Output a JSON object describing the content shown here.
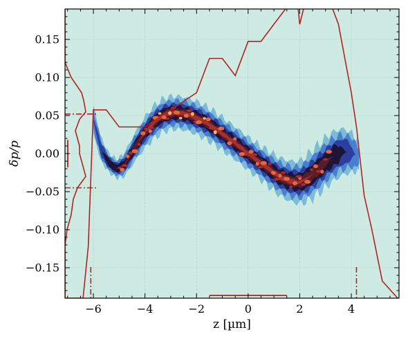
{
  "chart_data": {
    "type": "heatmap",
    "title": "",
    "xlabel": "z [µm]",
    "ylabel": "δp/p",
    "xlim": [
      -7.1,
      5.85
    ],
    "ylim": [
      -0.19,
      0.19
    ],
    "xticks": [
      -6,
      -4,
      -2,
      0,
      2,
      4
    ],
    "xtick_labels": [
      "−6",
      "−4",
      "−2",
      "0",
      "2",
      "4"
    ],
    "yticks": [
      0.15,
      0.1,
      0.05,
      0.0,
      -0.05,
      -0.1,
      -0.15
    ],
    "ytick_labels": [
      "0.15",
      "0.10",
      "0.05",
      "0.00",
      "−0.05",
      "−0.10",
      "−0.15"
    ],
    "grid": true,
    "density_centerline": {
      "z": [
        -6.0,
        -5.7,
        -5.4,
        -5.1,
        -4.8,
        -4.4,
        -4.0,
        -3.6,
        -3.2,
        -2.8,
        -2.4,
        -2.0,
        -1.6,
        -1.2,
        -0.8,
        -0.4,
        0.0,
        0.4,
        0.8,
        1.2,
        1.6,
        2.0,
        2.4,
        2.8,
        3.2,
        3.6,
        4.0,
        4.3
      ],
      "dp_over_p": [
        0.045,
        0.005,
        -0.012,
        -0.02,
        -0.015,
        0.008,
        0.028,
        0.043,
        0.052,
        0.054,
        0.052,
        0.047,
        0.04,
        0.031,
        0.021,
        0.011,
        0.0,
        -0.01,
        -0.02,
        -0.03,
        -0.036,
        -0.038,
        -0.03,
        -0.018,
        -0.006,
        0.002,
        0.002,
        -0.005
      ],
      "half_width": [
        0.012,
        0.01,
        0.008,
        0.008,
        0.01,
        0.012,
        0.013,
        0.014,
        0.014,
        0.014,
        0.014,
        0.014,
        0.014,
        0.014,
        0.014,
        0.014,
        0.014,
        0.014,
        0.015,
        0.016,
        0.017,
        0.018,
        0.02,
        0.021,
        0.021,
        0.02,
        0.017,
        0.012
      ],
      "intensity": [
        0.25,
        0.35,
        0.55,
        0.6,
        0.65,
        0.7,
        0.8,
        0.9,
        0.95,
        1.0,
        1.0,
        0.95,
        0.95,
        0.9,
        0.9,
        0.85,
        0.85,
        0.85,
        0.85,
        0.85,
        0.85,
        0.8,
        0.75,
        0.7,
        0.6,
        0.45,
        0.3,
        0.15
      ]
    },
    "contour_colors": [
      "#cdebe3",
      "#7cbcd6",
      "#4a7fd0",
      "#2c3f9f",
      "#1d1436",
      "#5a1b2b",
      "#a53030",
      "#e46a3c",
      "#f6b25d"
    ],
    "z_projection": {
      "z": [
        -7.1,
        -6.4,
        -6.2,
        -6.0,
        -5.5,
        -5.0,
        -4.0,
        -3.0,
        -2.0,
        -1.5,
        -1.0,
        -0.5,
        0.0,
        0.5,
        1.0,
        1.5,
        1.8,
        2.0,
        2.5,
        3.0,
        3.5,
        4.0,
        4.2,
        4.5,
        4.8,
        5.2,
        5.8
      ],
      "height": [
        0.0,
        0.0,
        0.03,
        0.11,
        0.11,
        0.1,
        0.1,
        0.11,
        0.12,
        0.14,
        0.14,
        0.13,
        0.15,
        0.15,
        0.16,
        0.17,
        0.19,
        0.16,
        0.19,
        0.18,
        0.16,
        0.12,
        0.1,
        0.06,
        0.04,
        0.01,
        0.0
      ],
      "rms_markers": [
        -6.1,
        4.2
      ],
      "bar_range": [
        -1.5,
        1.5
      ]
    },
    "dp_projection": {
      "dp_over_p": [
        0.19,
        0.12,
        0.1,
        0.08,
        0.07,
        0.055,
        0.045,
        0.03,
        0.01,
        0.0,
        -0.01,
        -0.03,
        -0.045,
        -0.06,
        -0.08,
        -0.1,
        -0.12,
        -0.19
      ],
      "width": [
        0.0,
        0.0,
        0.03,
        0.08,
        0.09,
        0.1,
        0.07,
        0.05,
        0.07,
        0.07,
        0.08,
        0.1,
        0.06,
        0.04,
        0.03,
        0.01,
        0.0,
        0.0
      ],
      "rms_markers": [
        0.052,
        -0.045
      ],
      "bar_range": [
        -0.018,
        0.018
      ]
    },
    "colors": {
      "background": "#cdebe3",
      "projection_line": "#b22222",
      "grid": "#9fb8b0"
    }
  }
}
